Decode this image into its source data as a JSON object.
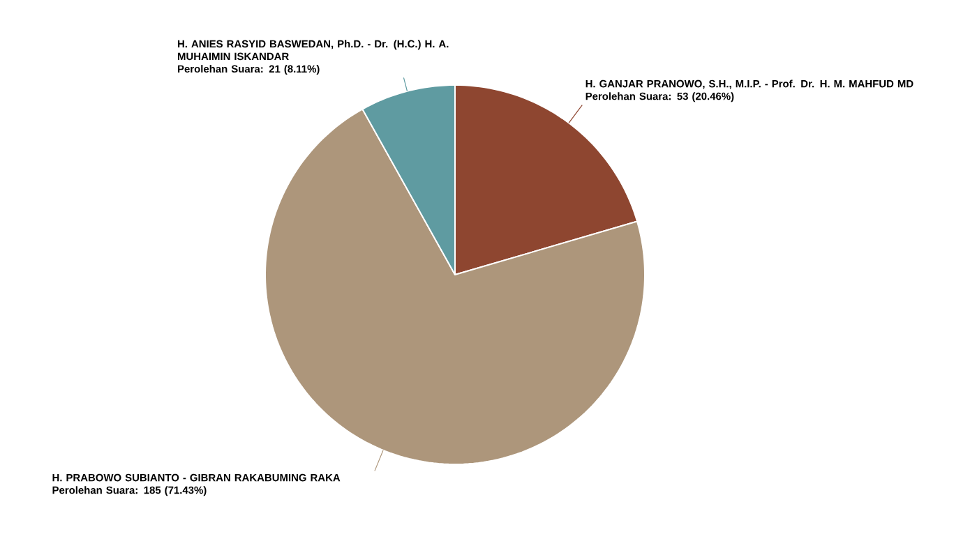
{
  "chart_data": {
    "type": "pie",
    "categories": [
      "H. GANJAR PRANOWO, S.H., M.I.P. - Prof. Dr. H. M. MAHFUD MD",
      "H. PRABOWO SUBIANTO - GIBRAN RAKABUMING RAKA",
      "H. ANIES RASYID BASWEDAN, Ph.D. - Dr. (H.C.) H. A. MUHAIMIN ISKANDAR"
    ],
    "values": [
      53,
      185,
      21
    ],
    "colors": [
      "#8e4630",
      "#ad967b",
      "#5f9ba1"
    ],
    "value_labels": [
      "Perolehan Suara: 53 (20.46%)",
      "Perolehan Suara: 185 (71.43%)",
      "Perolehan Suara: 21 (8.11%)"
    ]
  }
}
